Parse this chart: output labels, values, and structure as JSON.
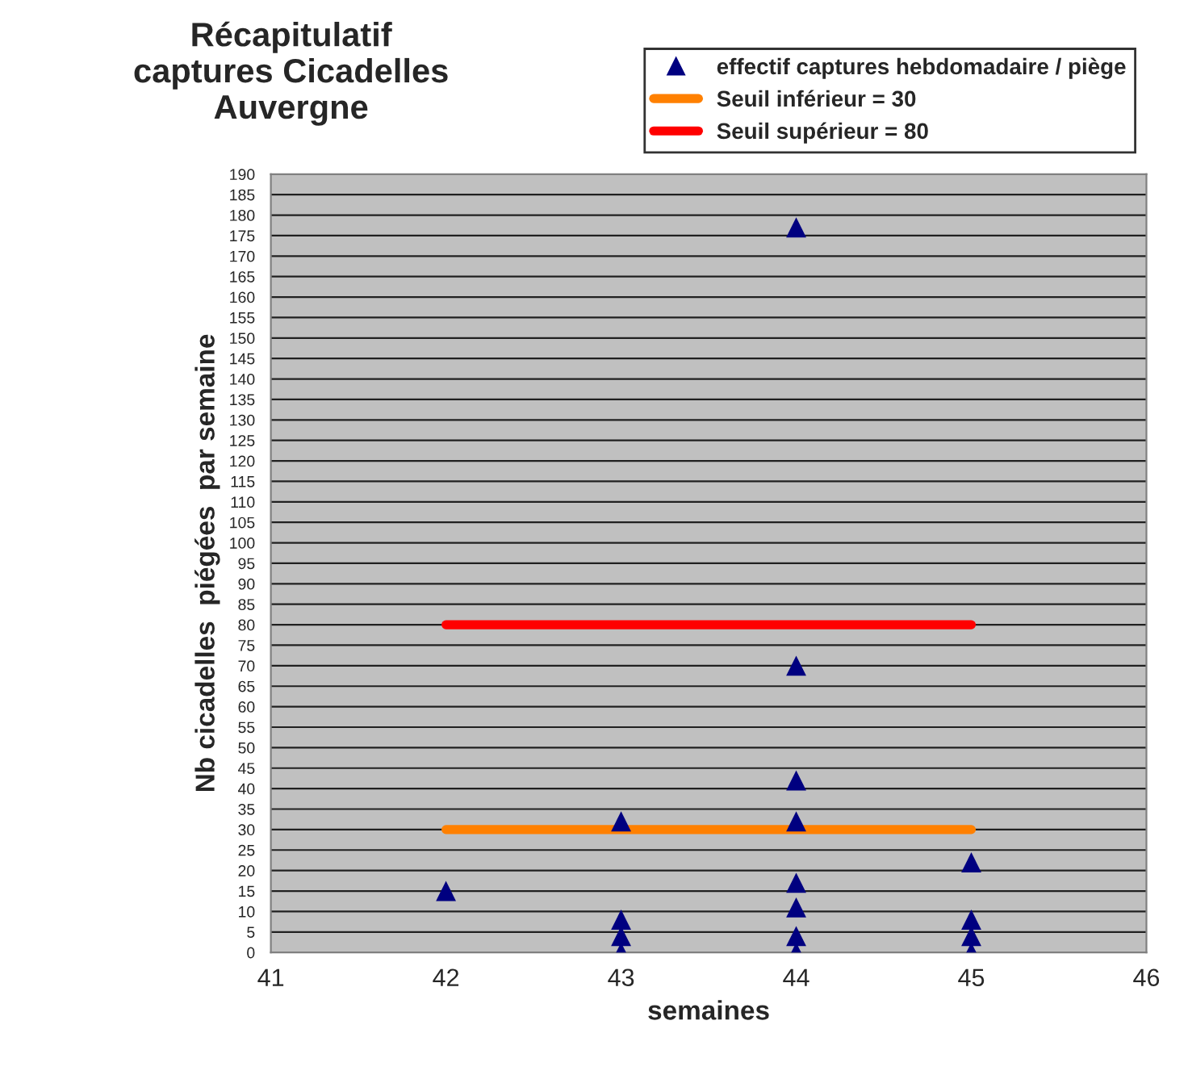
{
  "chart_data": {
    "type": "scatter",
    "title": "Récapitulatif\ncaptures Cicadelles\nAuvergne",
    "xlabel": "semaines",
    "ylabel": "Nb cicadelles  piégées  par semaine",
    "series": [
      {
        "name": "effectif captures hebdomadaire / piège",
        "color": "#000080",
        "marker": "triangle",
        "x": [
          42,
          43,
          43,
          43,
          43,
          44,
          44,
          44,
          44,
          44,
          44,
          44,
          44,
          45,
          45,
          45,
          45
        ],
        "values": [
          15,
          32,
          8,
          4,
          0,
          177,
          70,
          42,
          32,
          17,
          11,
          4,
          0,
          22,
          8,
          4,
          0
        ]
      },
      {
        "name": "Seuil inférieur = 30",
        "type": "line",
        "color": "#ff8000",
        "marker": "none",
        "x": [
          42,
          45
        ],
        "values": [
          30,
          30
        ]
      },
      {
        "name": "Seuil supérieur = 80",
        "type": "line",
        "color": "#ff0000",
        "marker": "none",
        "x": [
          42,
          45
        ],
        "values": [
          80,
          80
        ]
      }
    ],
    "xlim": [
      41,
      46
    ],
    "xticks": [
      41,
      42,
      43,
      44,
      45,
      46
    ],
    "ylim": [
      0,
      190
    ],
    "yticks": [
      0,
      5,
      10,
      15,
      20,
      25,
      30,
      35,
      40,
      45,
      50,
      55,
      60,
      65,
      70,
      75,
      80,
      85,
      90,
      95,
      100,
      105,
      110,
      115,
      120,
      125,
      130,
      135,
      140,
      145,
      150,
      155,
      160,
      165,
      170,
      175,
      180,
      185,
      190
    ],
    "grid": "y",
    "legend": "top right"
  }
}
